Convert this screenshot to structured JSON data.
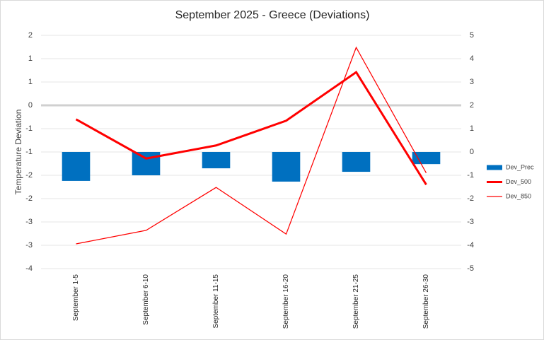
{
  "chart_data": {
    "type": "bar-line",
    "title": "September 2025 - Greece (Deviations)",
    "y_label": "Temperature Deviation",
    "categories": [
      "September 1-5",
      "September 6-10",
      "September 11-15",
      "September 16-20",
      "September 21-25",
      "September 26-30"
    ],
    "series": [
      {
        "name": "Dev_Prec",
        "type": "bar",
        "color": "#0070c0",
        "axis": "y2",
        "values": [
          -1.24,
          -1.0,
          -0.7,
          -1.27,
          -0.85,
          -0.52
        ]
      },
      {
        "name": "Dev_500",
        "type": "line",
        "color": "#ff0000",
        "width": 3,
        "values": [
          -0.3,
          -1.14,
          -0.86,
          -0.33,
          0.71,
          -1.7
        ]
      },
      {
        "name": "Dev_850",
        "type": "line",
        "color": "#ff0000",
        "width": 1.25,
        "values": [
          -2.97,
          -2.68,
          -1.76,
          -2.76,
          1.24,
          -1.45
        ]
      }
    ],
    "ylim": [
      -3.5,
      1.5
    ],
    "yticks": [
      {
        "value": 1.5,
        "label": "2"
      },
      {
        "value": 1,
        "label": "1"
      },
      {
        "value": 0.5,
        "label": "1"
      },
      {
        "value": 0,
        "label": "0"
      },
      {
        "value": -0.5,
        "label": "-1"
      },
      {
        "value": -1,
        "label": "-1"
      },
      {
        "value": -1.5,
        "label": "-2"
      },
      {
        "value": -2,
        "label": "-2"
      },
      {
        "value": -2.5,
        "label": "-3"
      },
      {
        "value": -3,
        "label": "-3"
      },
      {
        "value": -3.5,
        "label": "-4"
      }
    ],
    "y2lim": [
      -5,
      5
    ],
    "y2ticks": [
      5,
      4,
      3,
      2,
      1,
      0,
      -1,
      -2,
      -3,
      -4,
      -5
    ],
    "grid": true,
    "legend": "right"
  }
}
